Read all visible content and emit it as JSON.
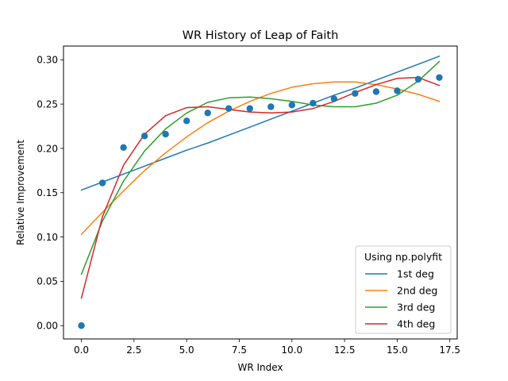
{
  "chart_data": {
    "type": "line",
    "title": "WR History of Leap of Faith",
    "xlabel": "WR Index",
    "ylabel": "Relative Improvement",
    "xlim": [
      -0.85,
      17.85
    ],
    "ylim": [
      -0.015,
      0.3155
    ],
    "xticks": [
      0.0,
      2.5,
      5.0,
      7.5,
      10.0,
      12.5,
      15.0,
      17.5
    ],
    "xtick_labels": [
      "0.0",
      "2.5",
      "5.0",
      "7.5",
      "10.0",
      "12.5",
      "15.0",
      "17.5"
    ],
    "yticks": [
      0.0,
      0.05,
      0.1,
      0.15,
      0.2,
      0.25,
      0.3
    ],
    "ytick_labels": [
      "0.00",
      "0.05",
      "0.10",
      "0.15",
      "0.20",
      "0.25",
      "0.30"
    ],
    "grid": false,
    "legend": {
      "title": "Using np.polyfit",
      "placement": "lower-right",
      "entries": [
        "1st deg",
        "2nd deg",
        "3rd deg",
        "4th deg"
      ]
    },
    "x": [
      0,
      1,
      2,
      3,
      4,
      5,
      6,
      7,
      8,
      9,
      10,
      11,
      12,
      13,
      14,
      15,
      16,
      17
    ],
    "scatter": {
      "color": "#1f77b4",
      "values": [
        0.0,
        0.161,
        0.201,
        0.214,
        0.216,
        0.231,
        0.24,
        0.245,
        0.245,
        0.247,
        0.249,
        0.251,
        0.256,
        0.262,
        0.264,
        0.265,
        0.278,
        0.28
      ]
    },
    "series": [
      {
        "name": "1st deg",
        "color": "#1f77b4",
        "values": [
          0.153,
          0.162,
          0.171,
          0.18,
          0.189,
          0.198,
          0.206,
          0.215,
          0.224,
          0.233,
          0.242,
          0.251,
          0.26,
          0.268,
          0.277,
          0.286,
          0.295,
          0.304
        ]
      },
      {
        "name": "2nd deg",
        "color": "#ff7f0e",
        "values": [
          0.103,
          0.128,
          0.152,
          0.175,
          0.195,
          0.213,
          0.229,
          0.242,
          0.253,
          0.262,
          0.269,
          0.273,
          0.275,
          0.275,
          0.272,
          0.267,
          0.261,
          0.253
        ]
      },
      {
        "name": "3rd deg",
        "color": "#2ca02c",
        "values": [
          0.058,
          0.118,
          0.163,
          0.197,
          0.222,
          0.24,
          0.252,
          0.257,
          0.258,
          0.256,
          0.253,
          0.249,
          0.247,
          0.247,
          0.251,
          0.26,
          0.276,
          0.298
        ]
      },
      {
        "name": "4th deg",
        "color": "#d62728",
        "values": [
          0.031,
          0.123,
          0.181,
          0.216,
          0.237,
          0.246,
          0.247,
          0.244,
          0.241,
          0.24,
          0.241,
          0.245,
          0.253,
          0.263,
          0.272,
          0.279,
          0.28,
          0.271
        ]
      }
    ]
  }
}
